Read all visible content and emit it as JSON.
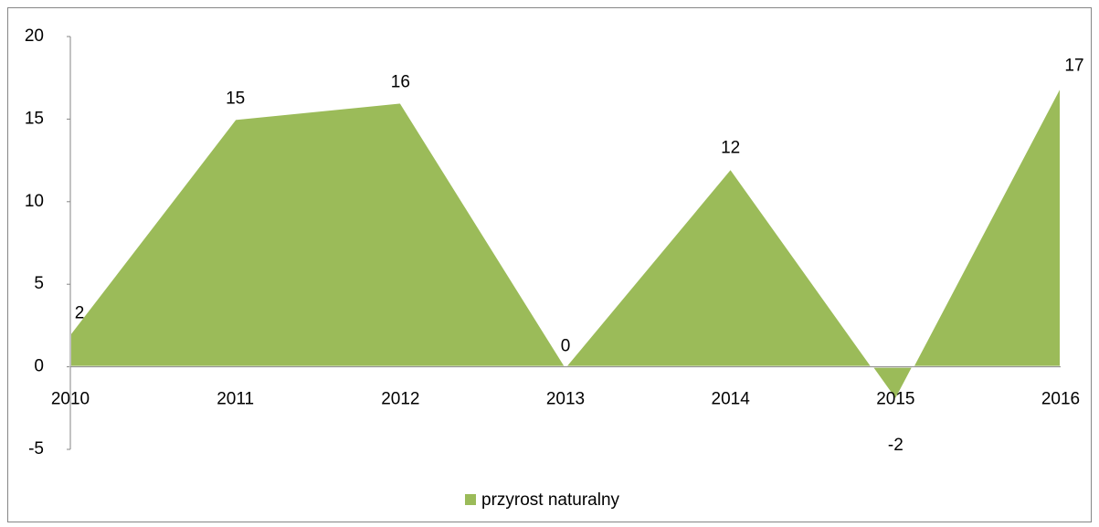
{
  "chart_data": {
    "type": "area",
    "categories": [
      "2010",
      "2011",
      "2012",
      "2013",
      "2014",
      "2015",
      "2016"
    ],
    "series": [
      {
        "name": "przyrost naturalny",
        "color": "#9bbb59",
        "values": [
          2,
          15,
          16,
          0,
          12,
          -2,
          17
        ]
      }
    ],
    "ylim": [
      -5,
      20
    ],
    "yticks": [
      -5,
      0,
      5,
      10,
      15,
      20
    ],
    "legend": "bottom"
  }
}
